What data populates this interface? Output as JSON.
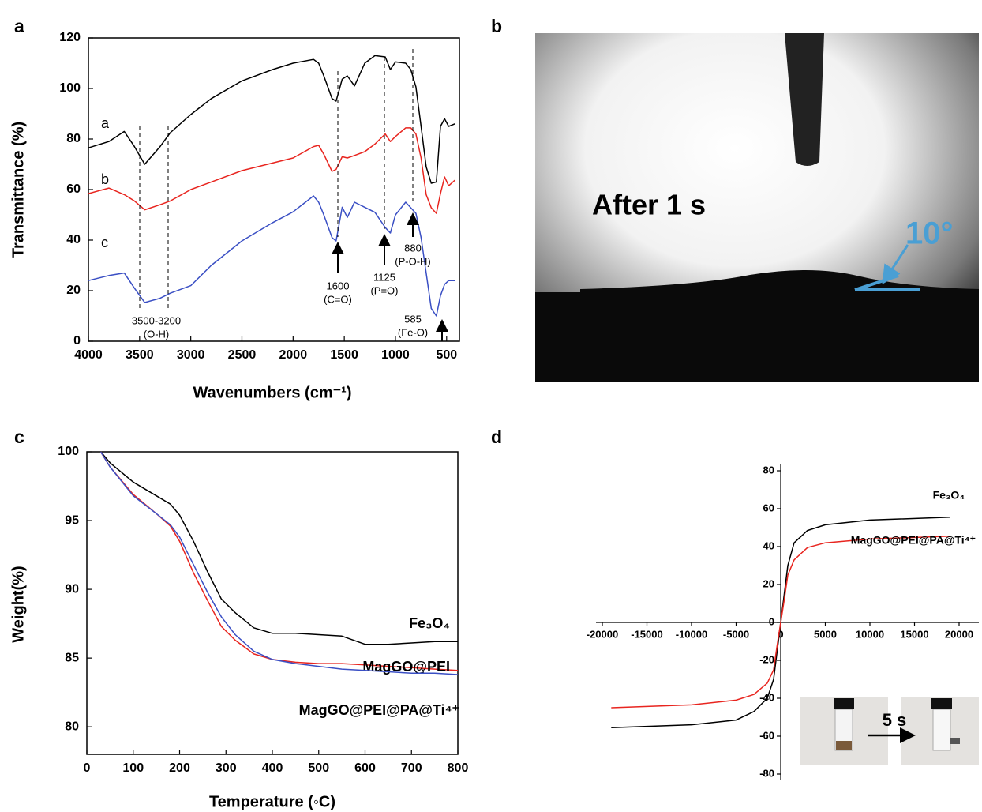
{
  "chart_data": [
    {
      "panel": "a",
      "type": "line",
      "x_label": "Wavenumbers (cm⁻¹)",
      "y_label": "Transmittance (%)",
      "x": [
        4000,
        3800,
        3650,
        3550,
        3450,
        3300,
        3200,
        3000,
        2800,
        2500,
        2200,
        2000,
        1800,
        1750,
        1700,
        1620,
        1580,
        1520,
        1470,
        1400,
        1300,
        1200,
        1100,
        1050,
        1000,
        900,
        850,
        800,
        750,
        700,
        650,
        600,
        560,
        520,
        480,
        420
      ],
      "xlim": [
        4000,
        375
      ],
      "xticks": [
        4000,
        3500,
        3000,
        2500,
        2000,
        1500,
        1000,
        500
      ],
      "ylim": [
        0,
        120
      ],
      "yticks": [
        0,
        20,
        40,
        60,
        80,
        100,
        120
      ],
      "series": [
        {
          "name": "a",
          "color": "#000000",
          "values": [
            76.5,
            79,
            83,
            77,
            70,
            77,
            82.5,
            89.7,
            96,
            103,
            107.5,
            110,
            111.5,
            110,
            105,
            96,
            95,
            103.7,
            105,
            101,
            110,
            113,
            112.5,
            107.5,
            110.5,
            110,
            107.5,
            100.6,
            85,
            69,
            62.5,
            63,
            85,
            88,
            85,
            86
          ]
        },
        {
          "name": "b",
          "color": "#e8251f",
          "values": [
            58.4,
            60.6,
            58,
            55.5,
            52,
            54,
            55.5,
            60,
            63,
            67.5,
            70.5,
            72.5,
            77,
            77.5,
            74,
            67.2,
            68,
            73,
            72.5,
            73.5,
            75,
            78,
            82,
            79,
            81,
            84.4,
            84.4,
            82,
            72.5,
            58,
            52.8,
            50.6,
            58.4,
            65,
            61.5,
            63.7
          ]
        },
        {
          "name": "c",
          "color": "#3a4fc4",
          "values": [
            24,
            26,
            27,
            21,
            15.3,
            17,
            19,
            22,
            30,
            39.7,
            46.9,
            51.2,
            57.5,
            55,
            50,
            41,
            39.7,
            53,
            49,
            55,
            53,
            51,
            45,
            42.8,
            50,
            55,
            52.8,
            50.6,
            41,
            27,
            13,
            10,
            18,
            22.5,
            24,
            24
          ]
        }
      ],
      "annotations": [
        "3500-3200",
        "(O-H)",
        "1600",
        "(C=O)",
        "1125",
        "(P=O)",
        "880",
        "(P-O-H)",
        "585",
        "(Fe-O)"
      ]
    },
    {
      "panel": "b",
      "type": "image",
      "annotations": [
        "After 1 s",
        "10°"
      ]
    },
    {
      "panel": "c",
      "type": "line",
      "x_label": "Temperature (◦C)",
      "y_label": "Weight(%)",
      "x": [
        30,
        50,
        100,
        150,
        180,
        200,
        230,
        260,
        290,
        320,
        360,
        400,
        450,
        500,
        550,
        600,
        650,
        700,
        750,
        800
      ],
      "xlim": [
        0,
        800
      ],
      "xticks": [
        0,
        100,
        200,
        300,
        400,
        500,
        600,
        700,
        800
      ],
      "ylim": [
        78,
        100
      ],
      "yticks": [
        80,
        85,
        90,
        95,
        100
      ],
      "series": [
        {
          "name": "Fe₃O₄",
          "color": "#000000",
          "values": [
            100,
            99.2,
            97.8,
            96.8,
            96.2,
            95.4,
            93.5,
            91.3,
            89.3,
            88.3,
            87.2,
            86.8,
            86.8,
            86.7,
            86.6,
            86.0,
            86.0,
            86.1,
            86.2,
            86.2
          ]
        },
        {
          "name": "MagGO@PEI",
          "color": "#e8251f",
          "values": [
            100,
            98.9,
            96.9,
            95.5,
            94.6,
            93.5,
            91.2,
            89.2,
            87.3,
            86.3,
            85.3,
            84.9,
            84.7,
            84.6,
            84.6,
            84.5,
            84.4,
            84.3,
            84.2,
            84.1
          ]
        },
        {
          "name": "MagGO@PEI@PA@Ti⁴⁺",
          "color": "#3a4fc4",
          "values": [
            100,
            98.9,
            96.8,
            95.5,
            94.7,
            93.8,
            91.8,
            89.8,
            88.0,
            86.7,
            85.5,
            84.9,
            84.6,
            84.4,
            84.2,
            84.1,
            84.0,
            83.9,
            83.9,
            83.8
          ]
        }
      ]
    },
    {
      "panel": "d",
      "type": "line",
      "x": [
        -19000,
        -10000,
        -5000,
        -3000,
        -1500,
        -800,
        -400,
        0,
        400,
        800,
        1500,
        3000,
        5000,
        10000,
        19000
      ],
      "xlim": [
        -20000,
        20000
      ],
      "xticks": [
        -20000,
        -15000,
        -10000,
        -5000,
        0,
        5000,
        10000,
        15000,
        20000
      ],
      "ylim": [
        -80,
        80
      ],
      "yticks": [
        -80,
        -60,
        -40,
        -20,
        0,
        20,
        40,
        60,
        80
      ],
      "series": [
        {
          "name": "Fe₃O₄",
          "color": "#000000",
          "values": [
            -55.5,
            -54,
            -51.5,
            -47,
            -40,
            -30,
            -15,
            0,
            15,
            30,
            42,
            48.5,
            51.5,
            54,
            55.5
          ]
        },
        {
          "name": "MagGO@PEI@PA@Ti⁴⁺",
          "color": "#e8251f",
          "values": [
            -45,
            -43.5,
            -41,
            -38,
            -32,
            -25,
            -12,
            0,
            12,
            25,
            33,
            39.5,
            42,
            44,
            45.5
          ]
        }
      ],
      "annotations": [
        "5 s"
      ]
    }
  ]
}
